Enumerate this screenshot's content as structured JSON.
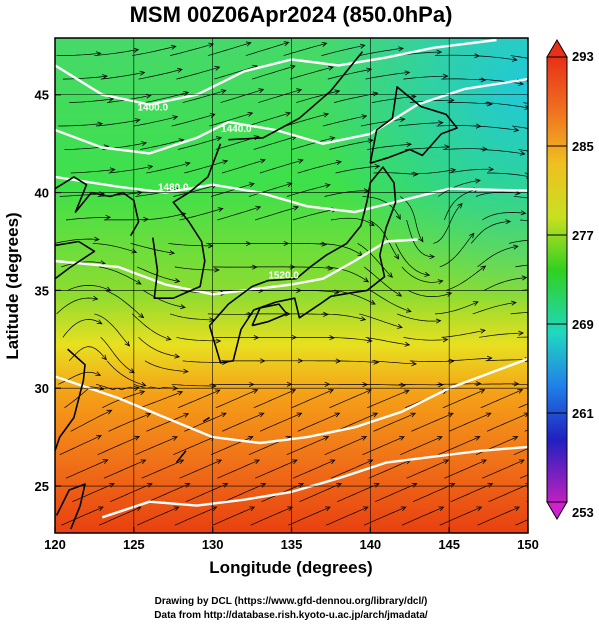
{
  "title": "MSM 00Z06Apr2024 (850.0hPa)",
  "xlabel": "Longitude (degrees)",
  "ylabel": "Latitude  (degrees)",
  "x_ticks": [
    "120",
    "125",
    "130",
    "135",
    "140",
    "145",
    "150"
  ],
  "y_ticks": [
    "25",
    "30",
    "35",
    "40",
    "45"
  ],
  "colorbar": {
    "ticks": [
      "293",
      "285",
      "277",
      "269",
      "261",
      "253"
    ],
    "min": 253,
    "max": 293,
    "unit": ""
  },
  "contour_labels": [
    "1400.0",
    "1440.0",
    "1480.0",
    "1520.0"
  ],
  "credits": {
    "line1": "Drawing by DCL (https://www.gfd-dennou.org/library/dcl/)",
    "line2": "Data from http://database.rish.kyoto-u.ac.jp/arch/jmadata/"
  },
  "map": {
    "lon_range": [
      120,
      150
    ],
    "lat_range": [
      22.6,
      47.9
    ],
    "grid": true
  },
  "colors": {
    "warm": "#f04010",
    "mid": "#40e040",
    "cold": "#20c8d8",
    "contour": "#ffffff",
    "coast": "#000000"
  }
}
